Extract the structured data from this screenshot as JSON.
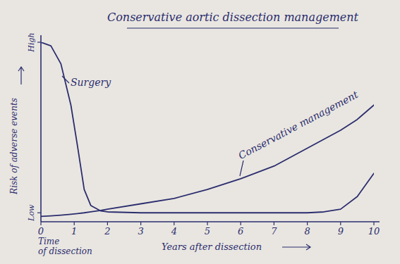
{
  "chart_data": {
    "type": "line",
    "title": "Conservative aortic dissection management",
    "x_label": "Years after dissection",
    "y_label": "Risk of adverse events",
    "x": [
      0,
      0.3,
      0.6,
      0.9,
      1.1,
      1.3,
      1.5,
      1.8,
      2,
      3,
      4,
      5,
      6,
      7,
      8,
      8.5,
      9,
      9.5,
      10
    ],
    "series": [
      {
        "name": "Surgery",
        "color": "#2b2d6e",
        "values": [
          100,
          98,
          88,
          65,
          42,
          18,
          9,
          6,
          5.5,
          5,
          5,
          5,
          5,
          5,
          5,
          5.5,
          7,
          14,
          27
        ]
      },
      {
        "name": "Conservative management",
        "color": "#2b2d6e",
        "values": [
          3,
          3.3,
          3.7,
          4.2,
          4.6,
          5,
          5.5,
          6.3,
          7,
          10,
          13,
          18,
          24,
          31,
          41,
          46,
          51,
          57,
          65
        ]
      }
    ],
    "xlim": [
      0,
      10
    ],
    "xticks": [
      0,
      1,
      2,
      3,
      4,
      5,
      6,
      7,
      8,
      9,
      10
    ],
    "ylim": [
      0,
      100
    ],
    "yticks": [
      {
        "value": 5,
        "label": "Low"
      },
      {
        "value": 100,
        "label": "High"
      }
    ],
    "grid": false,
    "annotations": [
      {
        "text": "Time of dissection",
        "x": 0
      }
    ]
  }
}
